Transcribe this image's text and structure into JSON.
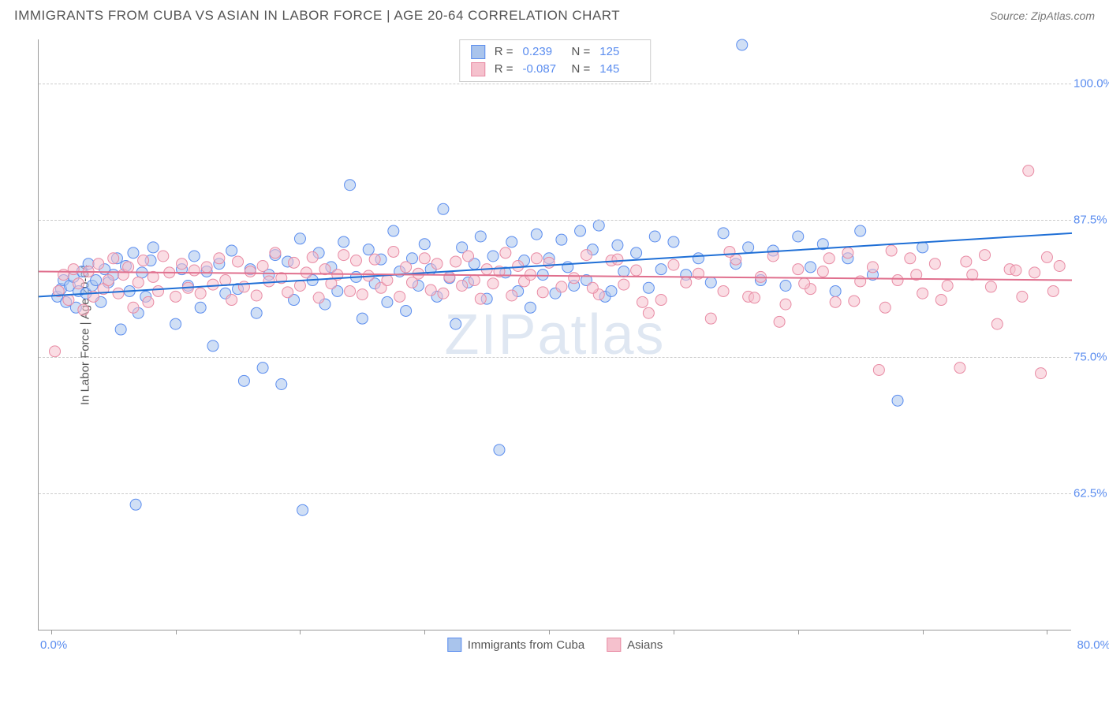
{
  "header": {
    "title": "IMMIGRANTS FROM CUBA VS ASIAN IN LABOR FORCE | AGE 20-64 CORRELATION CHART",
    "source": "Source: ZipAtlas.com"
  },
  "chart": {
    "type": "scatter",
    "watermark": "ZIPatlas",
    "background_color": "#ffffff",
    "grid_color": "#cccccc",
    "axis_color": "#999999",
    "ylabel": "In Labor Force | Age 20-64",
    "label_fontsize": 15,
    "label_color": "#555555",
    "yticks": [
      62.5,
      75.0,
      87.5,
      100.0
    ],
    "ytick_labels": [
      "62.5%",
      "75.0%",
      "87.5%",
      "100.0%"
    ],
    "ylim": [
      50,
      104
    ],
    "xticks": [
      0,
      10,
      20,
      30,
      40,
      50,
      60,
      70,
      80
    ],
    "xlim": [
      -1,
      82
    ],
    "x_left_label": "0.0%",
    "x_right_label": "80.0%",
    "tick_label_color": "#5b8def",
    "marker_radius": 7,
    "marker_opacity": 0.55,
    "line_width": 2,
    "series": [
      {
        "id": "cuba",
        "label": "Immigrants from Cuba",
        "R": "0.239",
        "N": "125",
        "fill_color": "#a9c4ec",
        "stroke_color": "#5b8def",
        "trend_color": "#1f6fd6",
        "trend": {
          "x1": -1,
          "y1": 80.5,
          "x2": 82,
          "y2": 86.3
        },
        "points": [
          [
            0.5,
            80.5
          ],
          [
            0.8,
            81.2
          ],
          [
            1.0,
            82.0
          ],
          [
            1.2,
            80.0
          ],
          [
            1.5,
            81.5
          ],
          [
            1.8,
            82.3
          ],
          [
            2.0,
            79.5
          ],
          [
            2.2,
            81.0
          ],
          [
            2.5,
            82.8
          ],
          [
            2.8,
            80.8
          ],
          [
            3.0,
            83.5
          ],
          [
            3.3,
            81.5
          ],
          [
            3.6,
            82.0
          ],
          [
            4.0,
            80.0
          ],
          [
            4.3,
            83.0
          ],
          [
            4.6,
            81.8
          ],
          [
            5.0,
            82.5
          ],
          [
            5.3,
            84.0
          ],
          [
            5.6,
            77.5
          ],
          [
            6.0,
            83.3
          ],
          [
            6.3,
            81.0
          ],
          [
            6.6,
            84.5
          ],
          [
            7.0,
            79.0
          ],
          [
            7.3,
            82.7
          ],
          [
            7.6,
            80.5
          ],
          [
            8.0,
            83.8
          ],
          [
            8.2,
            85.0
          ],
          [
            6.8,
            61.5
          ],
          [
            10.0,
            78.0
          ],
          [
            10.5,
            83.0
          ],
          [
            11.0,
            81.5
          ],
          [
            11.5,
            84.2
          ],
          [
            12.0,
            79.5
          ],
          [
            12.5,
            82.8
          ],
          [
            13.0,
            76.0
          ],
          [
            13.5,
            83.5
          ],
          [
            14.0,
            80.8
          ],
          [
            14.5,
            84.7
          ],
          [
            15.0,
            81.2
          ],
          [
            15.5,
            72.8
          ],
          [
            16.0,
            83.0
          ],
          [
            16.5,
            79.0
          ],
          [
            17.0,
            74.0
          ],
          [
            17.5,
            82.5
          ],
          [
            18.0,
            84.3
          ],
          [
            18.5,
            72.5
          ],
          [
            19.0,
            83.7
          ],
          [
            19.5,
            80.2
          ],
          [
            20.0,
            85.8
          ],
          [
            20.2,
            61.0
          ],
          [
            21.0,
            82.0
          ],
          [
            21.5,
            84.5
          ],
          [
            22.0,
            79.8
          ],
          [
            22.5,
            83.2
          ],
          [
            23.0,
            81.0
          ],
          [
            23.5,
            85.5
          ],
          [
            24.0,
            90.7
          ],
          [
            24.5,
            82.3
          ],
          [
            25.0,
            78.5
          ],
          [
            25.5,
            84.8
          ],
          [
            26.0,
            81.7
          ],
          [
            26.5,
            83.9
          ],
          [
            27.0,
            80.0
          ],
          [
            27.5,
            86.5
          ],
          [
            28.0,
            82.8
          ],
          [
            28.5,
            79.2
          ],
          [
            29.0,
            84.0
          ],
          [
            29.5,
            81.5
          ],
          [
            30.0,
            85.3
          ],
          [
            30.5,
            83.0
          ],
          [
            31.0,
            80.5
          ],
          [
            31.5,
            88.5
          ],
          [
            32.0,
            82.2
          ],
          [
            32.5,
            78.0
          ],
          [
            33.0,
            85.0
          ],
          [
            33.5,
            81.8
          ],
          [
            34.0,
            83.5
          ],
          [
            34.5,
            86.0
          ],
          [
            35.0,
            80.3
          ],
          [
            35.5,
            84.2
          ],
          [
            36.0,
            66.5
          ],
          [
            36.5,
            82.7
          ],
          [
            37.0,
            85.5
          ],
          [
            37.5,
            81.0
          ],
          [
            38.0,
            83.8
          ],
          [
            38.5,
            79.5
          ],
          [
            39.0,
            86.2
          ],
          [
            39.5,
            82.5
          ],
          [
            40.0,
            84.0
          ],
          [
            40.5,
            80.8
          ],
          [
            41.0,
            85.7
          ],
          [
            41.5,
            83.2
          ],
          [
            42.0,
            81.5
          ],
          [
            42.5,
            86.5
          ],
          [
            43.0,
            82.0
          ],
          [
            43.5,
            84.8
          ],
          [
            44.0,
            87.0
          ],
          [
            44.5,
            80.5
          ],
          [
            45.0,
            81.0
          ],
          [
            45.5,
            85.2
          ],
          [
            46.0,
            82.8
          ],
          [
            47.0,
            84.5
          ],
          [
            48.0,
            81.3
          ],
          [
            48.5,
            86.0
          ],
          [
            49.0,
            83.0
          ],
          [
            50.0,
            85.5
          ],
          [
            51.0,
            82.5
          ],
          [
            52.0,
            84.0
          ],
          [
            53.0,
            81.8
          ],
          [
            54.0,
            86.3
          ],
          [
            55.0,
            83.5
          ],
          [
            56.0,
            85.0
          ],
          [
            57.0,
            82.0
          ],
          [
            55.5,
            103.5
          ],
          [
            58.0,
            84.7
          ],
          [
            59.0,
            81.5
          ],
          [
            60.0,
            86.0
          ],
          [
            61.0,
            83.2
          ],
          [
            62.0,
            85.3
          ],
          [
            63.0,
            81.0
          ],
          [
            64.0,
            84.0
          ],
          [
            65.0,
            86.5
          ],
          [
            66.0,
            82.5
          ],
          [
            68.0,
            71.0
          ],
          [
            70.0,
            85.0
          ]
        ]
      },
      {
        "id": "asians",
        "label": "Asians",
        "R": "-0.087",
        "N": "145",
        "fill_color": "#f5c1cd",
        "stroke_color": "#e88ba4",
        "trend_color": "#e0708e",
        "trend": {
          "x1": -1,
          "y1": 82.8,
          "x2": 82,
          "y2": 82.0
        },
        "points": [
          [
            0.3,
            75.5
          ],
          [
            0.6,
            81.0
          ],
          [
            1.0,
            82.5
          ],
          [
            1.4,
            80.2
          ],
          [
            1.8,
            83.0
          ],
          [
            2.2,
            81.7
          ],
          [
            2.6,
            79.3
          ],
          [
            3.0,
            82.8
          ],
          [
            3.4,
            80.5
          ],
          [
            3.8,
            83.5
          ],
          [
            4.2,
            81.2
          ],
          [
            4.6,
            82.0
          ],
          [
            5.0,
            84.0
          ],
          [
            5.4,
            80.8
          ],
          [
            5.8,
            82.5
          ],
          [
            6.2,
            83.2
          ],
          [
            6.6,
            79.5
          ],
          [
            7.0,
            81.8
          ],
          [
            7.4,
            83.8
          ],
          [
            7.8,
            80.0
          ],
          [
            8.2,
            82.3
          ],
          [
            8.6,
            81.0
          ],
          [
            9.0,
            84.2
          ],
          [
            9.5,
            82.7
          ],
          [
            10.0,
            80.5
          ],
          [
            10.5,
            83.5
          ],
          [
            11.0,
            81.3
          ],
          [
            11.5,
            82.9
          ],
          [
            12.0,
            80.8
          ],
          [
            12.5,
            83.2
          ],
          [
            13.0,
            81.6
          ],
          [
            13.5,
            84.0
          ],
          [
            14.0,
            82.0
          ],
          [
            14.5,
            80.2
          ],
          [
            15.0,
            83.7
          ],
          [
            15.5,
            81.4
          ],
          [
            16.0,
            82.8
          ],
          [
            16.5,
            80.6
          ],
          [
            17.0,
            83.3
          ],
          [
            17.5,
            81.9
          ],
          [
            18.0,
            84.5
          ],
          [
            18.5,
            82.2
          ],
          [
            19.0,
            80.9
          ],
          [
            19.5,
            83.6
          ],
          [
            20.0,
            81.5
          ],
          [
            20.5,
            82.7
          ],
          [
            21.0,
            84.1
          ],
          [
            21.5,
            80.4
          ],
          [
            22.0,
            83.0
          ],
          [
            22.5,
            81.7
          ],
          [
            23.0,
            82.5
          ],
          [
            23.5,
            84.3
          ],
          [
            24.0,
            81.0
          ],
          [
            24.5,
            83.8
          ],
          [
            25.0,
            80.7
          ],
          [
            25.5,
            82.4
          ],
          [
            26.0,
            83.9
          ],
          [
            26.5,
            81.3
          ],
          [
            27.0,
            82.0
          ],
          [
            27.5,
            84.6
          ],
          [
            28.0,
            80.5
          ],
          [
            28.5,
            83.2
          ],
          [
            29.0,
            81.8
          ],
          [
            29.5,
            82.6
          ],
          [
            30.0,
            84.0
          ],
          [
            30.5,
            81.1
          ],
          [
            31.0,
            83.5
          ],
          [
            31.5,
            80.8
          ],
          [
            32.0,
            82.3
          ],
          [
            32.5,
            83.7
          ],
          [
            33.0,
            81.5
          ],
          [
            33.5,
            84.2
          ],
          [
            34.0,
            82.0
          ],
          [
            34.5,
            80.3
          ],
          [
            35.0,
            83.0
          ],
          [
            35.5,
            81.7
          ],
          [
            36.0,
            82.8
          ],
          [
            36.5,
            84.5
          ],
          [
            37.0,
            80.6
          ],
          [
            37.5,
            83.3
          ],
          [
            38.0,
            81.9
          ],
          [
            38.5,
            82.5
          ],
          [
            39.0,
            84.0
          ],
          [
            39.5,
            80.9
          ],
          [
            40.0,
            83.6
          ],
          [
            41.0,
            81.4
          ],
          [
            42.0,
            82.2
          ],
          [
            43.0,
            84.3
          ],
          [
            44.0,
            80.7
          ],
          [
            45.0,
            83.8
          ],
          [
            46.0,
            81.6
          ],
          [
            47.0,
            82.9
          ],
          [
            48.0,
            79.0
          ],
          [
            49.0,
            80.2
          ],
          [
            50.0,
            83.4
          ],
          [
            51.0,
            81.8
          ],
          [
            52.0,
            82.6
          ],
          [
            53.0,
            78.5
          ],
          [
            54.0,
            81.0
          ],
          [
            55.0,
            83.9
          ],
          [
            56.0,
            80.5
          ],
          [
            57.0,
            82.3
          ],
          [
            58.0,
            84.2
          ],
          [
            59.0,
            79.8
          ],
          [
            60.0,
            83.0
          ],
          [
            61.0,
            81.2
          ],
          [
            62.0,
            82.8
          ],
          [
            63.0,
            80.0
          ],
          [
            64.0,
            84.5
          ],
          [
            65.0,
            81.9
          ],
          [
            66.0,
            83.2
          ],
          [
            67.0,
            79.5
          ],
          [
            68.0,
            82.0
          ],
          [
            69.0,
            84.0
          ],
          [
            70.0,
            80.8
          ],
          [
            71.0,
            83.5
          ],
          [
            72.0,
            81.5
          ],
          [
            73.0,
            74.0
          ],
          [
            74.0,
            82.5
          ],
          [
            75.0,
            84.3
          ],
          [
            76.0,
            78.0
          ],
          [
            77.0,
            83.0
          ],
          [
            78.0,
            80.5
          ],
          [
            78.5,
            92.0
          ],
          [
            79.0,
            82.7
          ],
          [
            79.5,
            73.5
          ],
          [
            80.0,
            84.1
          ],
          [
            80.5,
            81.0
          ],
          [
            81.0,
            83.3
          ],
          [
            67.5,
            84.7
          ],
          [
            69.5,
            82.5
          ],
          [
            71.5,
            80.2
          ],
          [
            73.5,
            83.7
          ],
          [
            75.5,
            81.4
          ],
          [
            77.5,
            82.9
          ],
          [
            54.5,
            84.6
          ],
          [
            56.5,
            80.4
          ],
          [
            58.5,
            78.2
          ],
          [
            60.5,
            81.7
          ],
          [
            62.5,
            84.0
          ],
          [
            64.5,
            80.1
          ],
          [
            66.5,
            73.8
          ],
          [
            43.5,
            81.3
          ],
          [
            45.5,
            83.9
          ],
          [
            47.5,
            80.0
          ]
        ]
      }
    ]
  },
  "legend_bottom": {
    "items": [
      {
        "label": "Immigrants from Cuba",
        "fill": "#a9c4ec",
        "stroke": "#5b8def"
      },
      {
        "label": "Asians",
        "fill": "#f5c1cd",
        "stroke": "#e88ba4"
      }
    ]
  }
}
